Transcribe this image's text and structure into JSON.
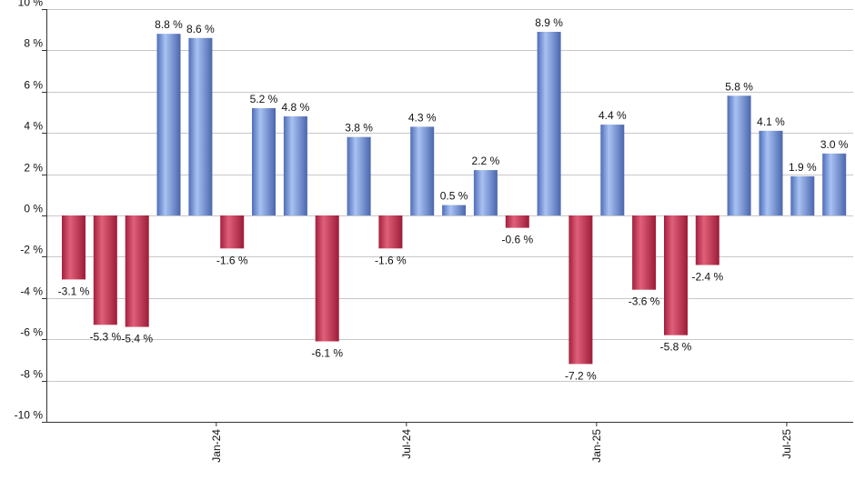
{
  "chart_data": {
    "type": "bar",
    "title": "",
    "xlabel": "",
    "ylabel": "",
    "ylim": [
      -10,
      10
    ],
    "ytick_step": 2,
    "y_unit_suffix": " %",
    "grid": true,
    "x_tick_labels": [
      {
        "label": "Jan-24",
        "index": 5
      },
      {
        "label": "Jul-24",
        "index": 11
      },
      {
        "label": "Jan-25",
        "index": 17
      },
      {
        "label": "Jul-25",
        "index": 23
      }
    ],
    "values": [
      -3.1,
      -5.3,
      -5.4,
      8.8,
      8.6,
      -1.6,
      5.2,
      4.8,
      -6.1,
      3.8,
      -1.6,
      4.3,
      0.5,
      2.2,
      -0.6,
      8.9,
      -7.2,
      4.4,
      -3.6,
      -5.8,
      -2.4,
      5.8,
      4.1,
      1.9,
      3.0
    ],
    "colors": {
      "positive": "#6e8fd6",
      "negative": "#c0304f"
    }
  }
}
